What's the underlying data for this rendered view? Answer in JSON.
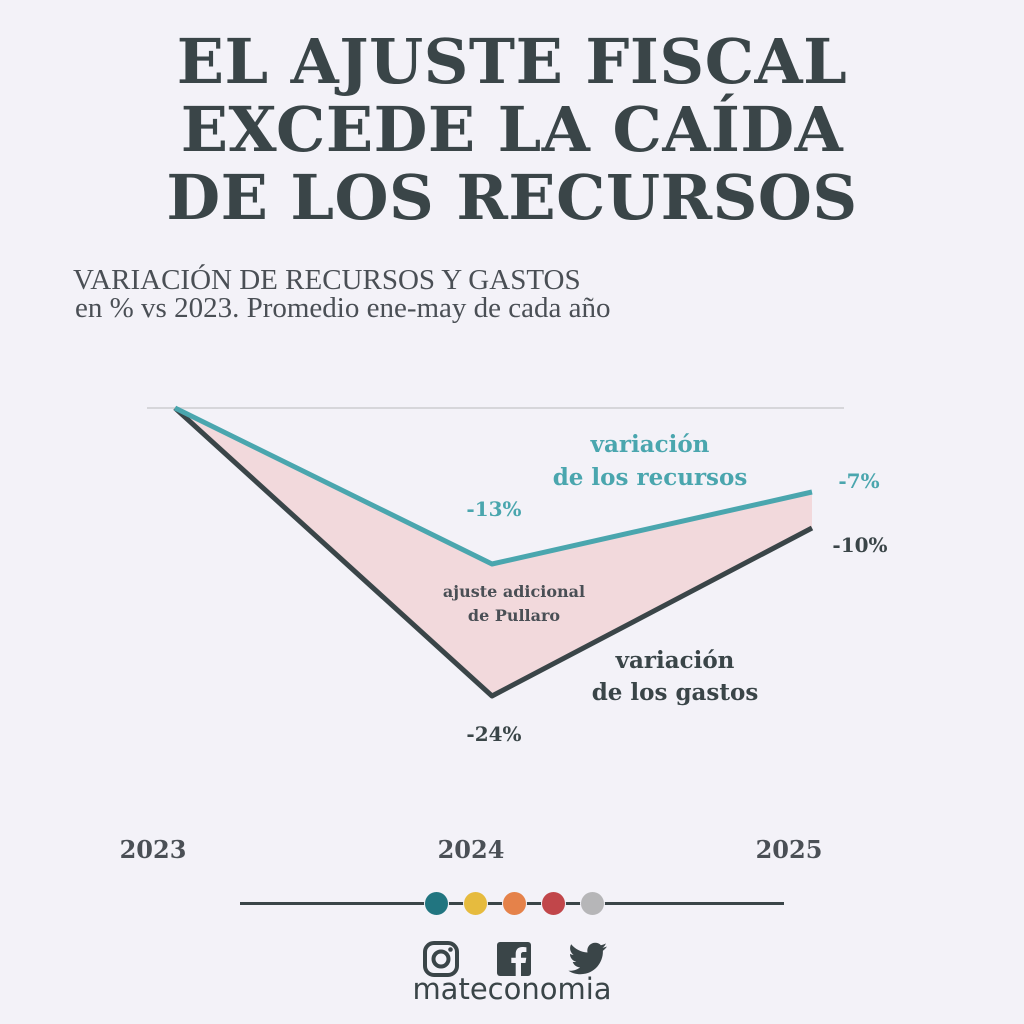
{
  "title_lines": [
    "EL AJUSTE FISCAL",
    "EXCEDE LA CAÍDA",
    "DE LOS RECURSOS"
  ],
  "subtitle_lines": [
    "VARIACIÓN DE RECURSOS Y GASTOS",
    "en % vs 2023. Promedio ene-may de cada año"
  ],
  "colors": {
    "background": "#f3f2f8",
    "recursos": "#4aa6ae",
    "gastos": "#3a4548",
    "gap_fill": "#f2d9dc",
    "baseline": "#d6d6da"
  },
  "chart_data": {
    "type": "line",
    "x": [
      "2023",
      "2024",
      "2025"
    ],
    "ylim": [
      -26,
      0
    ],
    "series": [
      {
        "name": "variación de los recursos",
        "label_lines": [
          "variación",
          "de los recursos"
        ],
        "values": [
          0,
          -13,
          -7
        ],
        "data_labels": [
          "",
          "-13%",
          "-7%"
        ],
        "color": "#4aa6ae"
      },
      {
        "name": "variación de los gastos",
        "label_lines": [
          "variación",
          "de los gastos"
        ],
        "values": [
          0,
          -24,
          -10
        ],
        "data_labels": [
          "",
          "-24%",
          "-10%"
        ],
        "color": "#3a4548"
      }
    ],
    "annotation_lines": [
      "ajuste adicional",
      "de Pullaro"
    ]
  },
  "footer": {
    "dots": [
      "#217580",
      "#e6bb3e",
      "#e5824a",
      "#c1464a",
      "#b6b6b8"
    ],
    "social_icons": [
      "instagram-icon",
      "facebook-icon",
      "twitter-icon"
    ],
    "brand": "mateconomia"
  }
}
